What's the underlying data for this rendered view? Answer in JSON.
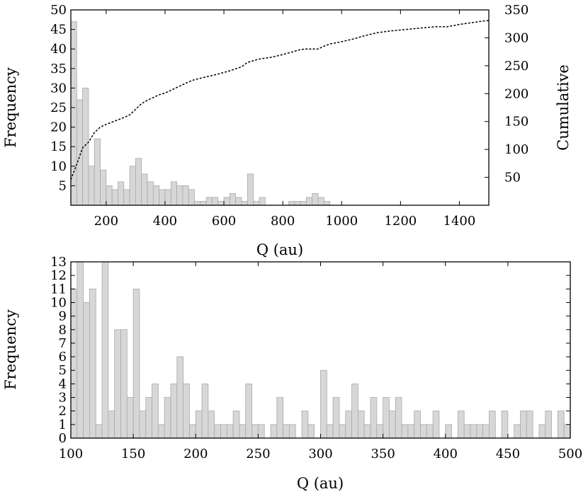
{
  "chart_data": [
    {
      "type": "bar",
      "panel": "top",
      "xlabel": "Q (au)",
      "ylabel": "Frequency",
      "y2label": "Cumulative",
      "xlim": [
        80,
        1500
      ],
      "ylim": [
        0,
        50
      ],
      "y2lim": [
        0,
        350
      ],
      "bin_width": 20,
      "bin_start": 80,
      "xticks": [
        200,
        400,
        600,
        800,
        1000,
        1200,
        1400
      ],
      "yticks": [
        5,
        10,
        15,
        20,
        25,
        30,
        35,
        40,
        45,
        50
      ],
      "y2ticks": [
        50,
        100,
        150,
        200,
        250,
        300,
        350
      ],
      "series": [
        {
          "values": [
            47,
            27,
            30,
            10,
            17,
            9,
            5,
            4,
            6,
            4,
            10,
            12,
            8,
            6,
            5,
            4,
            4,
            6,
            5,
            5,
            4,
            1,
            1,
            2,
            2,
            1,
            2,
            3,
            2,
            1,
            8,
            1,
            2,
            0,
            0,
            0,
            0,
            1,
            1,
            1,
            2,
            3,
            2,
            1,
            0,
            0,
            0,
            0,
            0,
            0,
            0,
            0,
            0,
            0,
            0,
            0,
            0,
            0,
            0,
            0,
            0,
            0,
            0,
            0,
            0,
            0,
            0,
            0,
            0,
            0,
            0,
            0,
            0
          ]
        },
        {
          "type": "line",
          "style": "dashed",
          "x": [
            80,
            100,
            120,
            140,
            160,
            180,
            200,
            220,
            240,
            260,
            280,
            300,
            320,
            340,
            360,
            380,
            400,
            420,
            440,
            460,
            480,
            500,
            540,
            580,
            620,
            660,
            680,
            720,
            760,
            800,
            840,
            860,
            880,
            920,
            940,
            960,
            1000,
            1040,
            1080,
            1120,
            1160,
            1200,
            1240,
            1280,
            1320,
            1360,
            1400,
            1440,
            1480,
            1500
          ],
          "values": [
            46,
            73,
            103,
            113,
            130,
            140,
            145,
            149,
            153,
            157,
            162,
            172,
            182,
            188,
            193,
            198,
            201,
            206,
            211,
            216,
            221,
            225,
            230,
            235,
            241,
            248,
            256,
            262,
            265,
            270,
            276,
            279,
            280,
            280,
            285,
            289,
            293,
            298,
            304,
            309,
            312,
            314,
            316,
            318,
            320,
            320,
            324,
            327,
            330,
            331
          ]
        }
      ]
    },
    {
      "type": "bar",
      "panel": "bottom",
      "xlabel": "Q (au)",
      "ylabel": "Frequency",
      "xlim": [
        100,
        500
      ],
      "ylim": [
        0,
        13
      ],
      "bin_width": 5,
      "bin_start": 100,
      "xticks": [
        100,
        150,
        200,
        250,
        300,
        350,
        400,
        450,
        500
      ],
      "yticks": [
        0,
        1,
        2,
        3,
        4,
        5,
        6,
        7,
        8,
        9,
        10,
        11,
        12,
        13
      ],
      "series": [
        {
          "values": [
            11,
            13,
            10,
            11,
            1,
            13,
            2,
            8,
            8,
            3,
            11,
            2,
            3,
            4,
            1,
            3,
            4,
            6,
            4,
            1,
            2,
            4,
            2,
            1,
            1,
            1,
            2,
            1,
            4,
            1,
            1,
            0,
            1,
            3,
            1,
            1,
            0,
            2,
            1,
            0,
            5,
            1,
            3,
            1,
            2,
            4,
            2,
            1,
            3,
            1,
            3,
            2,
            3,
            1,
            1,
            2,
            1,
            1,
            2,
            0,
            1,
            0,
            2,
            1,
            1,
            1,
            1,
            2,
            0,
            2,
            0,
            1,
            2,
            2,
            0,
            1,
            2,
            0,
            2,
            1,
            2,
            2
          ]
        }
      ]
    }
  ]
}
